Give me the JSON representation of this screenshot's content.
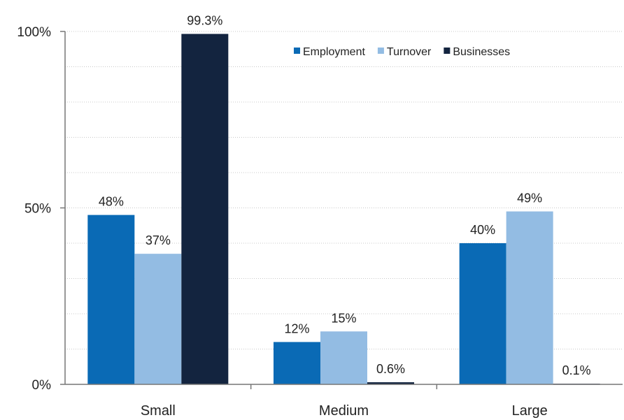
{
  "chart_data": {
    "type": "bar",
    "categories": [
      "Small",
      "Medium",
      "Large"
    ],
    "series": [
      {
        "name": "Employment",
        "color": "#0a6ab5",
        "values": [
          48,
          12,
          40
        ],
        "labels": [
          "48%",
          "12%",
          "40%"
        ]
      },
      {
        "name": "Turnover",
        "color": "#93bce3",
        "values": [
          37,
          15,
          49
        ],
        "labels": [
          "37%",
          "15%",
          "49%"
        ]
      },
      {
        "name": "Businesses",
        "color": "#13243f",
        "values": [
          99.3,
          0.6,
          0.1
        ],
        "labels": [
          "99.3%",
          "0.6%",
          "0.1%"
        ]
      }
    ],
    "ylim": [
      0,
      100
    ],
    "yticks": [
      0,
      50,
      100
    ],
    "ytick_labels": [
      "0%",
      "50%",
      "100%"
    ],
    "grid": true,
    "legend_position": "top-right"
  }
}
